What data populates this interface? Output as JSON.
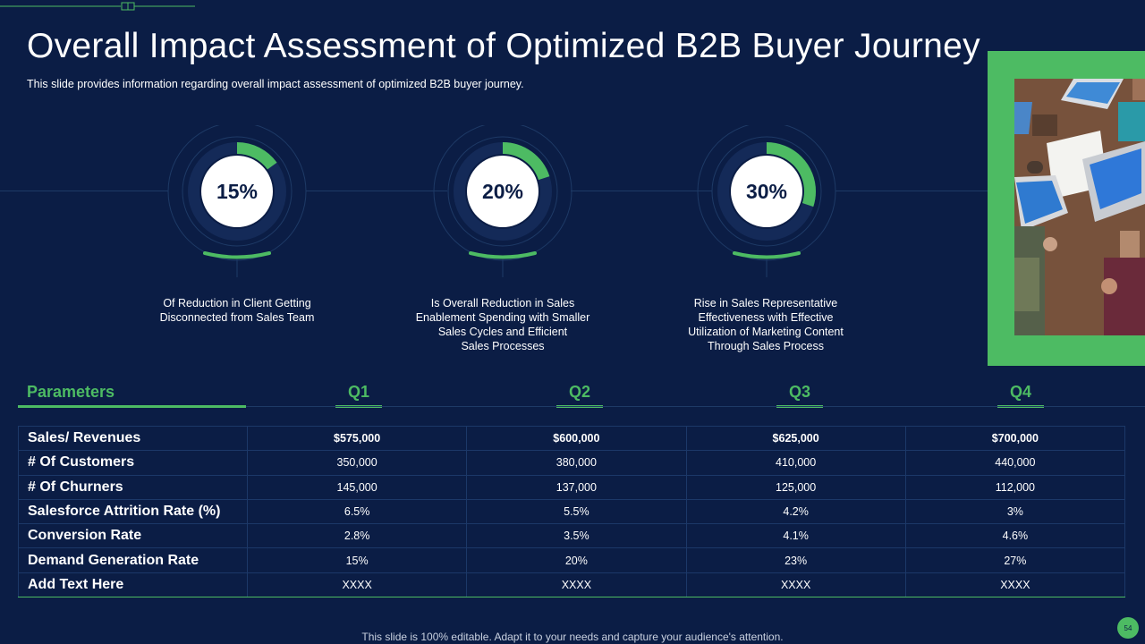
{
  "slide": {
    "title": "Overall Impact Assessment of Optimized B2B Buyer Journey",
    "subtitle": "This slide provides information regarding overall impact assessment of optimized B2B buyer journey.",
    "footer": "This slide is 100% editable. Adapt it to your needs and capture your audience's attention.",
    "page_number": "54"
  },
  "colors": {
    "background": "#0b1d45",
    "accent": "#4dbb63",
    "ring_track": "#142a58"
  },
  "metrics": [
    {
      "value_text": "15%",
      "value": 15,
      "description_lines": [
        "Of Reduction in Client Getting",
        "Disconnected from Sales Team"
      ]
    },
    {
      "value_text": "20%",
      "value": 20,
      "description_lines": [
        "Is Overall Reduction in Sales",
        "Enablement Spending with Smaller",
        "Sales Cycles and Efficient",
        "Sales Processes"
      ]
    },
    {
      "value_text": "30%",
      "value": 30,
      "description_lines": [
        "Rise in Sales Representative",
        "Effectiveness with Effective",
        "Utilization of Marketing Content",
        "Through  Sales Process"
      ]
    }
  ],
  "table": {
    "header_label": "Parameters",
    "quarters": [
      "Q1",
      "Q2",
      "Q3",
      "Q4"
    ],
    "rows": [
      {
        "label": "Sales/ Revenues",
        "values": [
          "$575,000",
          "$600,000",
          "$625,000",
          "$700,000"
        ]
      },
      {
        "label": "# Of Customers",
        "values": [
          "350,000",
          "380,000",
          "410,000",
          "440,000"
        ]
      },
      {
        "label": "# Of Churners",
        "values": [
          "145,000",
          "137,000",
          "125,000",
          "112,000"
        ]
      },
      {
        "label": "Salesforce Attrition Rate  (%)",
        "values": [
          "6.5%",
          "5.5%",
          "4.2%",
          "3%"
        ]
      },
      {
        "label": "Conversion Rate",
        "values": [
          "2.8%",
          "3.5%",
          "4.1%",
          "4.6%"
        ]
      },
      {
        "label": "Demand Generation Rate",
        "values": [
          "15%",
          "20%",
          "23%",
          "27%"
        ]
      },
      {
        "label": "Add Text Here",
        "values": [
          "XXXX",
          "XXXX",
          "XXXX",
          "XXXX"
        ]
      }
    ]
  }
}
